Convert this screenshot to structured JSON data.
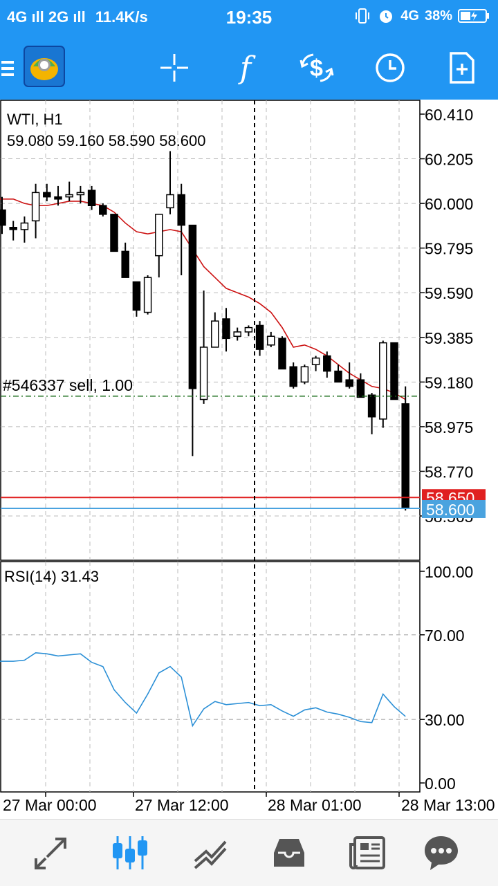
{
  "status_bar": {
    "network": "4G ıll 2G ıll",
    "speed": "11.4K/s",
    "time": "19:35",
    "signal_right": "4G",
    "battery": "38%"
  },
  "toolbar": {
    "icons": [
      "menu-icon",
      "metatrader-logo",
      "crosshair-icon",
      "function-icon",
      "currency-exchange-icon",
      "clock-icon",
      "new-document-icon"
    ],
    "function_label": "f"
  },
  "chart": {
    "symbol_label": "WTI, H1",
    "ohlc_label": "59.080 59.160 58.590 58.600",
    "order_label": "#546337 sell, 1.00",
    "order_price": 59.115,
    "bid_price_label": "58.650",
    "ask_price_label": "58.600",
    "bid_price": 58.65,
    "ask_price": 58.6,
    "bid_color": "#e02020",
    "ask_color": "#4aa3df",
    "price_ticks": [
      "60.410",
      "60.205",
      "60.000",
      "59.795",
      "59.590",
      "59.385",
      "59.180",
      "58.975",
      "58.770",
      "58.565"
    ],
    "time_ticks": [
      "27 Mar 00:00",
      "27 Mar 12:00",
      "28 Mar 01:00",
      "28 Mar 13:00"
    ],
    "rsi_label": "RSI(14) 31.43",
    "rsi_ticks": [
      "100.00",
      "70.00",
      "30.00",
      "0.00"
    ],
    "ma_color": "#cc1111",
    "rsi_color": "#2a8fd6"
  },
  "chart_data": {
    "type": "candlestick",
    "title": "WTI, H1",
    "ylim": [
      58.41,
      60.47
    ],
    "candles": [
      {
        "o": 59.97,
        "h": 60.03,
        "l": 59.86,
        "c": 59.9
      },
      {
        "o": 59.89,
        "h": 59.92,
        "l": 59.83,
        "c": 59.88
      },
      {
        "o": 59.88,
        "h": 59.94,
        "l": 59.82,
        "c": 59.91
      },
      {
        "o": 59.92,
        "h": 60.09,
        "l": 59.84,
        "c": 60.05
      },
      {
        "o": 60.05,
        "h": 60.09,
        "l": 60.01,
        "c": 60.03
      },
      {
        "o": 60.03,
        "h": 60.08,
        "l": 59.99,
        "c": 60.02
      },
      {
        "o": 60.03,
        "h": 60.1,
        "l": 60.01,
        "c": 60.04
      },
      {
        "o": 60.04,
        "h": 60.08,
        "l": 60.0,
        "c": 60.05
      },
      {
        "o": 60.06,
        "h": 60.08,
        "l": 59.97,
        "c": 59.99
      },
      {
        "o": 59.99,
        "h": 60.0,
        "l": 59.94,
        "c": 59.95
      },
      {
        "o": 59.95,
        "h": 59.95,
        "l": 59.78,
        "c": 59.78
      },
      {
        "o": 59.78,
        "h": 59.82,
        "l": 59.66,
        "c": 59.66
      },
      {
        "o": 59.64,
        "h": 59.64,
        "l": 59.48,
        "c": 59.51
      },
      {
        "o": 59.5,
        "h": 59.67,
        "l": 59.49,
        "c": 59.66
      },
      {
        "o": 59.76,
        "h": 59.94,
        "l": 59.66,
        "c": 59.95
      },
      {
        "o": 59.98,
        "h": 60.24,
        "l": 59.95,
        "c": 60.04
      },
      {
        "o": 60.04,
        "h": 60.09,
        "l": 59.67,
        "c": 59.9
      },
      {
        "o": 59.9,
        "h": 59.9,
        "l": 58.84,
        "c": 59.15
      },
      {
        "o": 59.1,
        "h": 59.6,
        "l": 59.08,
        "c": 59.34
      },
      {
        "o": 59.34,
        "h": 59.5,
        "l": 59.34,
        "c": 59.46
      },
      {
        "o": 59.47,
        "h": 59.52,
        "l": 59.32,
        "c": 59.38
      },
      {
        "o": 59.39,
        "h": 59.43,
        "l": 59.37,
        "c": 59.41
      },
      {
        "o": 59.41,
        "h": 59.44,
        "l": 59.39,
        "c": 59.43
      },
      {
        "o": 59.44,
        "h": 59.46,
        "l": 59.3,
        "c": 59.33
      },
      {
        "o": 59.35,
        "h": 59.41,
        "l": 59.34,
        "c": 59.39
      },
      {
        "o": 59.38,
        "h": 59.39,
        "l": 59.24,
        "c": 59.24
      },
      {
        "o": 59.25,
        "h": 59.27,
        "l": 59.15,
        "c": 59.16
      },
      {
        "o": 59.18,
        "h": 59.26,
        "l": 59.17,
        "c": 59.25
      },
      {
        "o": 59.26,
        "h": 59.3,
        "l": 59.23,
        "c": 59.29
      },
      {
        "o": 59.3,
        "h": 59.32,
        "l": 59.2,
        "c": 59.23
      },
      {
        "o": 59.23,
        "h": 59.26,
        "l": 59.18,
        "c": 59.18
      },
      {
        "o": 59.19,
        "h": 59.27,
        "l": 59.15,
        "c": 59.16
      },
      {
        "o": 59.19,
        "h": 59.22,
        "l": 59.11,
        "c": 59.11
      },
      {
        "o": 59.12,
        "h": 59.13,
        "l": 58.94,
        "c": 59.02
      },
      {
        "o": 59.01,
        "h": 59.37,
        "l": 58.97,
        "c": 59.36
      },
      {
        "o": 59.36,
        "h": 59.36,
        "l": 59.1,
        "c": 59.1
      },
      {
        "o": 59.08,
        "h": 59.16,
        "l": 58.59,
        "c": 58.6
      }
    ],
    "ma": [
      60.02,
      60.02,
      60.0,
      59.99,
      59.99,
      60.0,
      60.01,
      60.01,
      60.0,
      59.99,
      59.96,
      59.91,
      59.87,
      59.86,
      59.87,
      59.88,
      59.87,
      59.79,
      59.71,
      59.66,
      59.61,
      59.59,
      59.57,
      59.54,
      59.5,
      59.43,
      59.34,
      59.35,
      59.33,
      59.3,
      59.26,
      59.22,
      59.19,
      59.16,
      59.15,
      59.13,
      59.1
    ],
    "rsi": [
      57.5,
      57.5,
      58.0,
      61.5,
      61.0,
      60.0,
      60.5,
      61.0,
      57.0,
      55.0,
      44.0,
      38.0,
      33.0,
      42.0,
      52.0,
      55.0,
      50.0,
      27.0,
      35.0,
      38.5,
      37.0,
      37.5,
      38.0,
      36.5,
      37.0,
      34.0,
      31.5,
      34.5,
      35.5,
      33.5,
      32.5,
      31.0,
      29.0,
      28.5,
      42.0,
      36.0,
      31.43
    ]
  },
  "bottom_nav": [
    "quotes-icon",
    "chart-icon",
    "trade-icon",
    "history-icon",
    "news-icon",
    "chat-icon"
  ]
}
